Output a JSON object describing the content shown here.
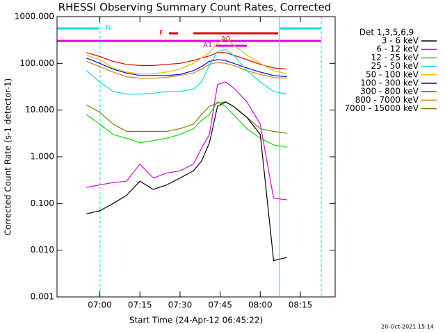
{
  "chart_data": {
    "type": "line",
    "title": "RHESSI Observing Summary Count Rates, Corrected",
    "y_label": "Corrected Count Rate (s-1 detector-1)",
    "x_label": "Start Time (24-Apr-12 06:45:22)",
    "footer": "20-Oct-2021 15:14",
    "legend_title": "Det 1,3,5,6,9",
    "flags": [
      "N",
      "F",
      "A0",
      "A1"
    ],
    "log_y": true,
    "x": [
      "06:55",
      "07:00",
      "07:05",
      "07:10",
      "07:15",
      "07:20",
      "07:25",
      "07:30",
      "07:35",
      "07:38",
      "07:41",
      "07:44",
      "07:47",
      "07:50",
      "07:55",
      "08:00",
      "08:05",
      "08:10"
    ],
    "xlim": [
      "06:44",
      "08:28"
    ],
    "xticks": [
      "07:00",
      "07:15",
      "07:30",
      "07:45",
      "08:00",
      "08:15"
    ],
    "ylim": [
      0.001,
      1000
    ],
    "yticks": [
      {
        "value": 0.001,
        "label": "0.001"
      },
      {
        "value": 0.01,
        "label": "0.010"
      },
      {
        "value": 0.1,
        "label": "0.100"
      },
      {
        "value": 1,
        "label": "1.000"
      },
      {
        "value": 10,
        "label": "10.000"
      },
      {
        "value": 100,
        "label": "100.000"
      },
      {
        "value": 1000,
        "label": "1000.000"
      }
    ],
    "series": [
      {
        "name": "3 - 6 keV",
        "color": "#000000",
        "values": [
          0.06,
          0.07,
          0.1,
          0.15,
          0.3,
          0.2,
          0.25,
          0.35,
          0.5,
          0.8,
          2,
          12,
          15,
          12,
          7,
          3,
          0.006,
          0.007
        ]
      },
      {
        "name": "6 - 12 keV",
        "color": "#e000e0",
        "values": [
          0.22,
          0.25,
          0.28,
          0.3,
          0.7,
          0.35,
          0.45,
          0.5,
          0.7,
          1.5,
          3,
          35,
          40,
          30,
          15,
          5,
          0.13,
          0.12
        ]
      },
      {
        "name": "12 - 25 keV",
        "color": "#00e000",
        "values": [
          8,
          5,
          3,
          2.5,
          2,
          2.2,
          2.5,
          3,
          4,
          6,
          8,
          15,
          12,
          8,
          4,
          2.5,
          1.8,
          1.6
        ]
      },
      {
        "name": "25 - 50 keV",
        "color": "#00e0e0",
        "values": [
          70,
          40,
          25,
          22,
          22,
          23,
          25,
          25,
          28,
          40,
          90,
          180,
          200,
          150,
          70,
          40,
          25,
          22
        ]
      },
      {
        "name": "50 - 100 keV",
        "color": "#e0c000",
        "values": [
          150,
          120,
          80,
          65,
          60,
          60,
          65,
          75,
          100,
          130,
          170,
          270,
          350,
          250,
          150,
          100,
          70,
          60
        ]
      },
      {
        "name": "100 - 300 keV",
        "color": "#0000e0",
        "values": [
          130,
          100,
          75,
          62,
          55,
          55,
          55,
          58,
          70,
          85,
          110,
          120,
          115,
          100,
          80,
          65,
          55,
          52
        ]
      },
      {
        "name": "300 - 800 keV",
        "color": "#e00000",
        "values": [
          170,
          140,
          110,
          95,
          90,
          90,
          95,
          100,
          115,
          130,
          145,
          170,
          170,
          150,
          120,
          95,
          80,
          75
        ]
      },
      {
        "name": "800 - 7000 keV",
        "color": "#e08000",
        "values": [
          110,
          85,
          65,
          52,
          48,
          48,
          50,
          55,
          62,
          75,
          95,
          105,
          100,
          90,
          70,
          58,
          50,
          48
        ]
      },
      {
        "name": "7000 - 15000 keV",
        "color": "#808000",
        "values": [
          13,
          9,
          5,
          3.5,
          3.5,
          3.5,
          3.5,
          4,
          5,
          8,
          12,
          14,
          15,
          12,
          7,
          4,
          3.5,
          3.2
        ]
      }
    ]
  }
}
